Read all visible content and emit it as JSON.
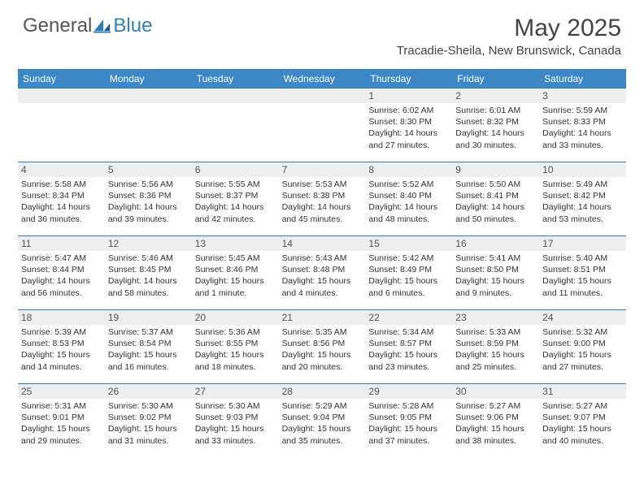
{
  "brand": {
    "general": "General",
    "blue": "Blue"
  },
  "title": "May 2025",
  "location": "Tracadie-Sheila, New Brunswick, Canada",
  "colors": {
    "header_band": "#3d87c7",
    "rule": "#2f7fba",
    "day_band": "#eeeeee",
    "text": "#333333",
    "title_text": "#444444"
  },
  "dow": [
    "Sunday",
    "Monday",
    "Tuesday",
    "Wednesday",
    "Thursday",
    "Friday",
    "Saturday"
  ],
  "weeks": [
    [
      null,
      null,
      null,
      null,
      {
        "n": "1",
        "sr": "Sunrise: 6:02 AM",
        "ss": "Sunset: 8:30 PM",
        "d1": "Daylight: 14 hours",
        "d2": "and 27 minutes."
      },
      {
        "n": "2",
        "sr": "Sunrise: 6:01 AM",
        "ss": "Sunset: 8:32 PM",
        "d1": "Daylight: 14 hours",
        "d2": "and 30 minutes."
      },
      {
        "n": "3",
        "sr": "Sunrise: 5:59 AM",
        "ss": "Sunset: 8:33 PM",
        "d1": "Daylight: 14 hours",
        "d2": "and 33 minutes."
      }
    ],
    [
      {
        "n": "4",
        "sr": "Sunrise: 5:58 AM",
        "ss": "Sunset: 8:34 PM",
        "d1": "Daylight: 14 hours",
        "d2": "and 36 minutes."
      },
      {
        "n": "5",
        "sr": "Sunrise: 5:56 AM",
        "ss": "Sunset: 8:36 PM",
        "d1": "Daylight: 14 hours",
        "d2": "and 39 minutes."
      },
      {
        "n": "6",
        "sr": "Sunrise: 5:55 AM",
        "ss": "Sunset: 8:37 PM",
        "d1": "Daylight: 14 hours",
        "d2": "and 42 minutes."
      },
      {
        "n": "7",
        "sr": "Sunrise: 5:53 AM",
        "ss": "Sunset: 8:38 PM",
        "d1": "Daylight: 14 hours",
        "d2": "and 45 minutes."
      },
      {
        "n": "8",
        "sr": "Sunrise: 5:52 AM",
        "ss": "Sunset: 8:40 PM",
        "d1": "Daylight: 14 hours",
        "d2": "and 48 minutes."
      },
      {
        "n": "9",
        "sr": "Sunrise: 5:50 AM",
        "ss": "Sunset: 8:41 PM",
        "d1": "Daylight: 14 hours",
        "d2": "and 50 minutes."
      },
      {
        "n": "10",
        "sr": "Sunrise: 5:49 AM",
        "ss": "Sunset: 8:42 PM",
        "d1": "Daylight: 14 hours",
        "d2": "and 53 minutes."
      }
    ],
    [
      {
        "n": "11",
        "sr": "Sunrise: 5:47 AM",
        "ss": "Sunset: 8:44 PM",
        "d1": "Daylight: 14 hours",
        "d2": "and 56 minutes."
      },
      {
        "n": "12",
        "sr": "Sunrise: 5:46 AM",
        "ss": "Sunset: 8:45 PM",
        "d1": "Daylight: 14 hours",
        "d2": "and 58 minutes."
      },
      {
        "n": "13",
        "sr": "Sunrise: 5:45 AM",
        "ss": "Sunset: 8:46 PM",
        "d1": "Daylight: 15 hours",
        "d2": "and 1 minute."
      },
      {
        "n": "14",
        "sr": "Sunrise: 5:43 AM",
        "ss": "Sunset: 8:48 PM",
        "d1": "Daylight: 15 hours",
        "d2": "and 4 minutes."
      },
      {
        "n": "15",
        "sr": "Sunrise: 5:42 AM",
        "ss": "Sunset: 8:49 PM",
        "d1": "Daylight: 15 hours",
        "d2": "and 6 minutes."
      },
      {
        "n": "16",
        "sr": "Sunrise: 5:41 AM",
        "ss": "Sunset: 8:50 PM",
        "d1": "Daylight: 15 hours",
        "d2": "and 9 minutes."
      },
      {
        "n": "17",
        "sr": "Sunrise: 5:40 AM",
        "ss": "Sunset: 8:51 PM",
        "d1": "Daylight: 15 hours",
        "d2": "and 11 minutes."
      }
    ],
    [
      {
        "n": "18",
        "sr": "Sunrise: 5:39 AM",
        "ss": "Sunset: 8:53 PM",
        "d1": "Daylight: 15 hours",
        "d2": "and 14 minutes."
      },
      {
        "n": "19",
        "sr": "Sunrise: 5:37 AM",
        "ss": "Sunset: 8:54 PM",
        "d1": "Daylight: 15 hours",
        "d2": "and 16 minutes."
      },
      {
        "n": "20",
        "sr": "Sunrise: 5:36 AM",
        "ss": "Sunset: 8:55 PM",
        "d1": "Daylight: 15 hours",
        "d2": "and 18 minutes."
      },
      {
        "n": "21",
        "sr": "Sunrise: 5:35 AM",
        "ss": "Sunset: 8:56 PM",
        "d1": "Daylight: 15 hours",
        "d2": "and 20 minutes."
      },
      {
        "n": "22",
        "sr": "Sunrise: 5:34 AM",
        "ss": "Sunset: 8:57 PM",
        "d1": "Daylight: 15 hours",
        "d2": "and 23 minutes."
      },
      {
        "n": "23",
        "sr": "Sunrise: 5:33 AM",
        "ss": "Sunset: 8:59 PM",
        "d1": "Daylight: 15 hours",
        "d2": "and 25 minutes."
      },
      {
        "n": "24",
        "sr": "Sunrise: 5:32 AM",
        "ss": "Sunset: 9:00 PM",
        "d1": "Daylight: 15 hours",
        "d2": "and 27 minutes."
      }
    ],
    [
      {
        "n": "25",
        "sr": "Sunrise: 5:31 AM",
        "ss": "Sunset: 9:01 PM",
        "d1": "Daylight: 15 hours",
        "d2": "and 29 minutes."
      },
      {
        "n": "26",
        "sr": "Sunrise: 5:30 AM",
        "ss": "Sunset: 9:02 PM",
        "d1": "Daylight: 15 hours",
        "d2": "and 31 minutes."
      },
      {
        "n": "27",
        "sr": "Sunrise: 5:30 AM",
        "ss": "Sunset: 9:03 PM",
        "d1": "Daylight: 15 hours",
        "d2": "and 33 minutes."
      },
      {
        "n": "28",
        "sr": "Sunrise: 5:29 AM",
        "ss": "Sunset: 9:04 PM",
        "d1": "Daylight: 15 hours",
        "d2": "and 35 minutes."
      },
      {
        "n": "29",
        "sr": "Sunrise: 5:28 AM",
        "ss": "Sunset: 9:05 PM",
        "d1": "Daylight: 15 hours",
        "d2": "and 37 minutes."
      },
      {
        "n": "30",
        "sr": "Sunrise: 5:27 AM",
        "ss": "Sunset: 9:06 PM",
        "d1": "Daylight: 15 hours",
        "d2": "and 38 minutes."
      },
      {
        "n": "31",
        "sr": "Sunrise: 5:27 AM",
        "ss": "Sunset: 9:07 PM",
        "d1": "Daylight: 15 hours",
        "d2": "and 40 minutes."
      }
    ]
  ]
}
